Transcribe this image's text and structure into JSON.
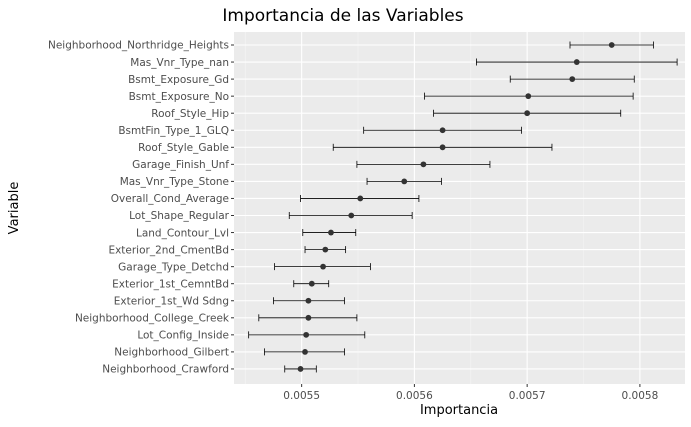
{
  "chart_data": {
    "type": "scatter",
    "subtype": "dot-with-error-bars",
    "title": "Importancia de las Variables",
    "xlabel": "Importancia",
    "ylabel": "Variable",
    "xlim": [
      0.00544,
      0.00584
    ],
    "x_ticks": [
      0.0055,
      0.0056,
      0.0057,
      0.0058
    ],
    "x_tick_labels": [
      "0.0055",
      "0.0056",
      "0.0057",
      "0.0058"
    ],
    "grid": true,
    "legend": "none",
    "colors": {
      "panel_background": "#ebebeb",
      "grid_major": "#ffffff",
      "grid_minor": "#f5f5f5",
      "point": "#333333",
      "errorbar": "#000000"
    },
    "points": [
      {
        "variable": "Neighborhood_Northridge_Heights",
        "importance": 0.005775,
        "lower": 0.005738,
        "upper": 0.005812
      },
      {
        "variable": "Mas_Vnr_Type_nan",
        "importance": 0.005744,
        "lower": 0.005655,
        "upper": 0.005833
      },
      {
        "variable": "Bsmt_Exposure_Gd",
        "importance": 0.00574,
        "lower": 0.005685,
        "upper": 0.005795
      },
      {
        "variable": "Bsmt_Exposure_No",
        "importance": 0.005701,
        "lower": 0.005609,
        "upper": 0.005794
      },
      {
        "variable": "Roof_Style_Hip",
        "importance": 0.0057,
        "lower": 0.005617,
        "upper": 0.005783
      },
      {
        "variable": "BsmtFin_Type_1_GLQ",
        "importance": 0.005625,
        "lower": 0.005555,
        "upper": 0.005695
      },
      {
        "variable": "Roof_Style_Gable",
        "importance": 0.005625,
        "lower": 0.005528,
        "upper": 0.005722
      },
      {
        "variable": "Garage_Finish_Unf",
        "importance": 0.005608,
        "lower": 0.005549,
        "upper": 0.005667
      },
      {
        "variable": "Mas_Vnr_Type_Stone",
        "importance": 0.005591,
        "lower": 0.005558,
        "upper": 0.005624
      },
      {
        "variable": "Overall_Cond_Average",
        "importance": 0.005552,
        "lower": 0.005499,
        "upper": 0.005604
      },
      {
        "variable": "Lot_Shape_Regular",
        "importance": 0.005544,
        "lower": 0.005489,
        "upper": 0.005598
      },
      {
        "variable": "Land_Contour_Lvl",
        "importance": 0.005526,
        "lower": 0.005501,
        "upper": 0.005548
      },
      {
        "variable": "Exterior_2nd_CmentBd",
        "importance": 0.005521,
        "lower": 0.005503,
        "upper": 0.005539
      },
      {
        "variable": "Garage_Type_Detchd",
        "importance": 0.005519,
        "lower": 0.005476,
        "upper": 0.005561
      },
      {
        "variable": "Exterior_1st_CemntBd",
        "importance": 0.005509,
        "lower": 0.005493,
        "upper": 0.005524
      },
      {
        "variable": "Exterior_1st_Wd Sdng",
        "importance": 0.005506,
        "lower": 0.005475,
        "upper": 0.005538
      },
      {
        "variable": "Neighborhood_College_Creek",
        "importance": 0.005506,
        "lower": 0.005462,
        "upper": 0.005549
      },
      {
        "variable": "Lot_Config_Inside",
        "importance": 0.005504,
        "lower": 0.005453,
        "upper": 0.005556
      },
      {
        "variable": "Neighborhood_Gilbert",
        "importance": 0.005503,
        "lower": 0.005467,
        "upper": 0.005538
      },
      {
        "variable": "Neighborhood_Crawford",
        "importance": 0.005499,
        "lower": 0.005485,
        "upper": 0.005513
      }
    ]
  }
}
